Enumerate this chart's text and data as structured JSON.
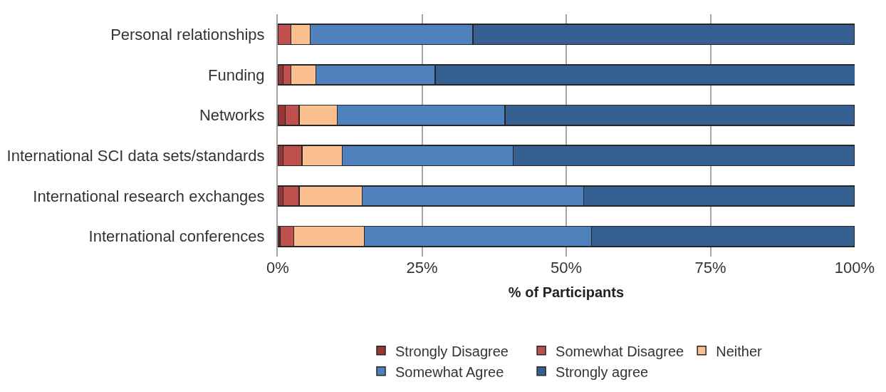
{
  "chart_data": {
    "type": "bar",
    "orientation": "horizontal",
    "stacked": true,
    "categories": [
      "Personal relationships",
      "Funding",
      "Networks",
      "International SCI data sets/standards",
      "International research exchanges",
      "International conferences"
    ],
    "series": [
      {
        "name": "Strongly Disagree",
        "color": "#953735",
        "values": [
          0,
          0.9,
          1.3,
          0.9,
          0.9,
          0.4
        ]
      },
      {
        "name": "Somewhat Disagree",
        "color": "#c0504d",
        "values": [
          2.3,
          1.4,
          2.4,
          3.3,
          2.8,
          2.4
        ]
      },
      {
        "name": "Neither",
        "color": "#fac090",
        "values": [
          3.3,
          4.3,
          6.6,
          7.0,
          10.9,
          12.2
        ]
      },
      {
        "name": "Somewhat Agree",
        "color": "#4f81bd",
        "values": [
          28.2,
          20.7,
          29.1,
          29.6,
          38.4,
          39.4
        ]
      },
      {
        "name": "Strongly agree",
        "color": "#376092",
        "values": [
          66.2,
          72.8,
          60.6,
          59.2,
          47.0,
          45.6
        ]
      }
    ],
    "xlabel": "% of Participants",
    "xlim": [
      0,
      100
    ],
    "xticks": [
      {
        "value": 0,
        "label": "0%"
      },
      {
        "value": 25,
        "label": "25%"
      },
      {
        "value": 50,
        "label": "50%"
      },
      {
        "value": 75,
        "label": "75%"
      },
      {
        "value": 100,
        "label": "100%"
      }
    ],
    "grid": "x",
    "legend": "bottom"
  }
}
